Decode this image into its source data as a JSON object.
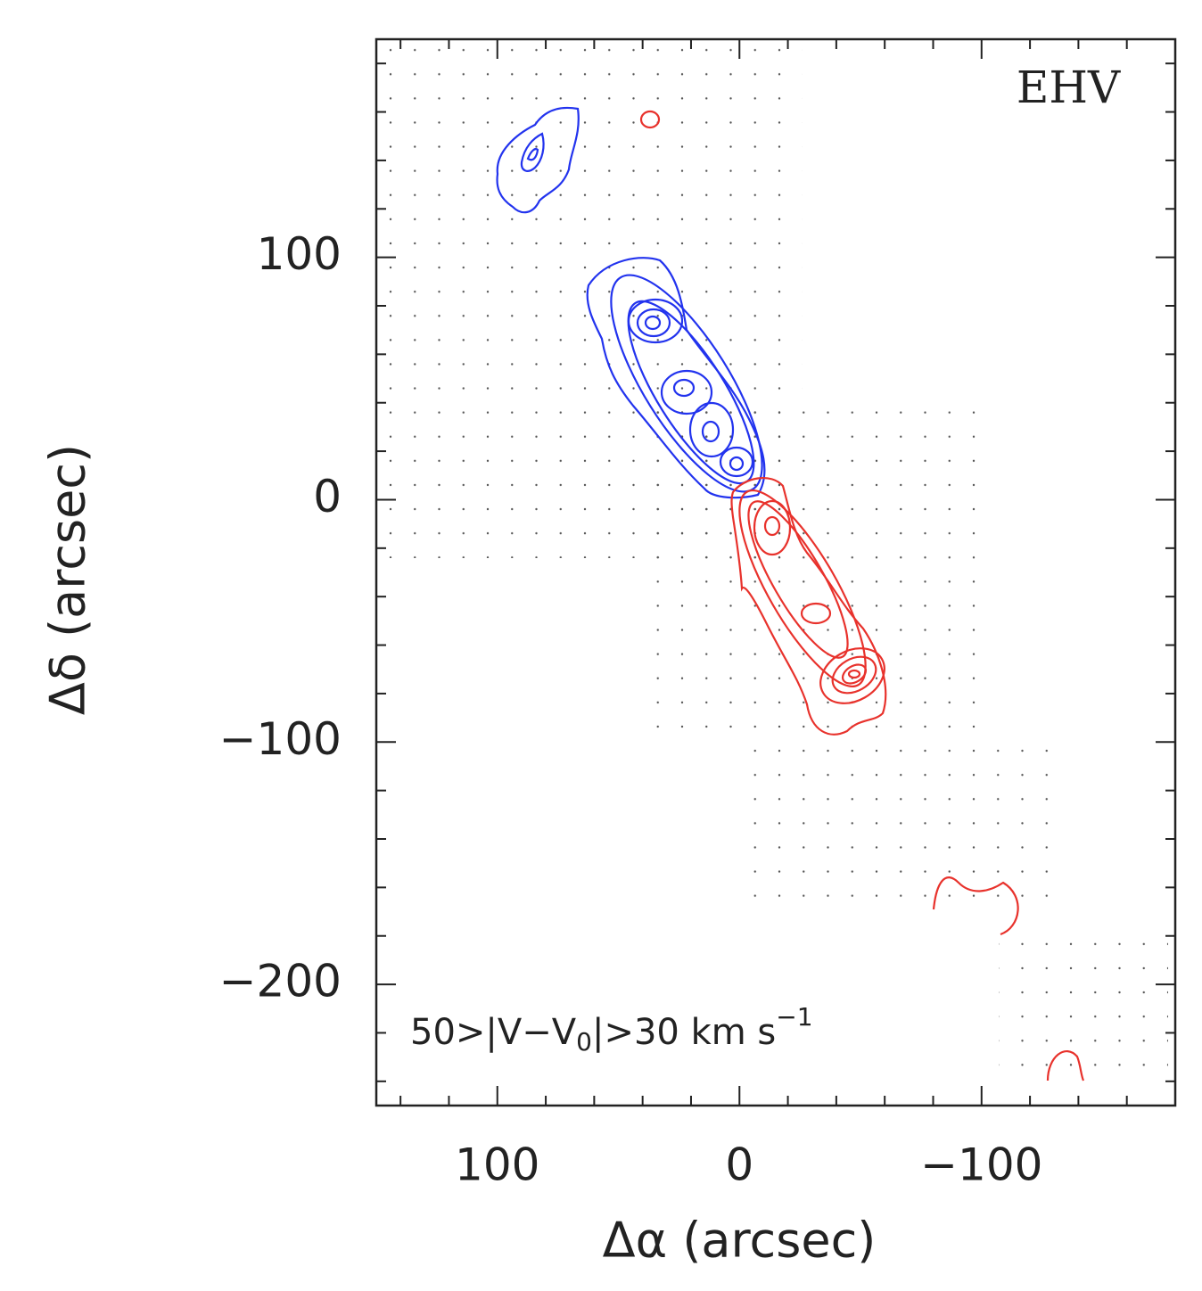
{
  "chart_data": {
    "type": "contour",
    "annotation": "EHV",
    "velocity_label": {
      "text": "50>|V−V",
      "sub": "0",
      "after": "|>30 km s",
      "sup": "−1"
    },
    "xlabel": "Δα (arcsec)",
    "ylabel": "Δδ (arcsec)",
    "xlim": [
      150,
      -180
    ],
    "ylim": [
      -250,
      190
    ],
    "xticks": [
      100,
      0,
      {
        "value": -100,
        "label": "−100"
      }
    ],
    "yticks": [
      100,
      0,
      {
        "value": -100,
        "label": "−100"
      },
      {
        "value": -200,
        "label": "−200"
      }
    ],
    "xminorticks": [
      140,
      120,
      80,
      60,
      40,
      20,
      -20,
      -40,
      -60,
      -80,
      -120,
      -140,
      -160
    ],
    "yminorticks": [
      180,
      160,
      140,
      120,
      80,
      60,
      40,
      20,
      -20,
      -40,
      -60,
      -80,
      -120,
      -140,
      -160,
      -180,
      -220,
      -240
    ]
  }
}
